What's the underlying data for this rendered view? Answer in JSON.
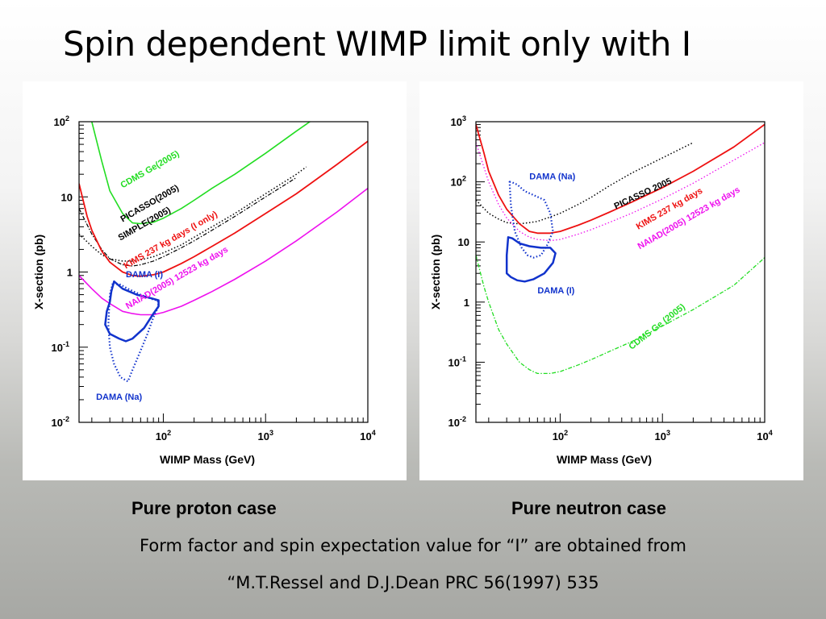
{
  "slide": {
    "title": "Spin dependent WIMP limit only with I",
    "caption_left": "Pure proton case",
    "caption_right": "Pure neutron case",
    "footnote_line1": "Form factor and spin expectation value for “I” are obtained from",
    "footnote_line2": "“M.T.Ressel and D.J.Dean PRC 56(1997) 535"
  },
  "chart_data": [
    {
      "type": "line",
      "xlabel": "WIMP Mass (GeV)",
      "ylabel": "X-section (pb)",
      "xscale": "log",
      "yscale": "log",
      "xlim": [
        15,
        10000
      ],
      "ylim": [
        0.01,
        100
      ],
      "xticks": [
        {
          "v": 100,
          "m": "10",
          "e": "2"
        },
        {
          "v": 1000,
          "m": "10",
          "e": "3"
        },
        {
          "v": 10000,
          "m": "10",
          "e": "4"
        }
      ],
      "yticks": [
        {
          "v": 0.01,
          "m": "10",
          "e": "-2"
        },
        {
          "v": 0.1,
          "m": "10",
          "e": "-1"
        },
        {
          "v": 1,
          "m": "1",
          "e": ""
        },
        {
          "v": 10,
          "m": "10",
          "e": ""
        },
        {
          "v": 100,
          "m": "10",
          "e": "2"
        }
      ],
      "series": [
        {
          "name": "CDMS Ge(2005)",
          "color": "#22dd22",
          "style": "solid",
          "width": 1.6,
          "x": [
            20,
            25,
            30,
            40,
            50,
            60,
            80,
            100,
            150,
            200,
            300,
            500,
            1000,
            2000,
            3000
          ],
          "y": [
            100,
            30,
            12,
            6,
            4.5,
            4.4,
            4.6,
            5.2,
            7,
            9,
            13,
            20,
            38,
            75,
            110
          ]
        },
        {
          "name": "PICASSO(2005)",
          "color": "#000000",
          "style": "dotted",
          "width": 1.5,
          "x": [
            15,
            20,
            25,
            30,
            40,
            50,
            60,
            80,
            100,
            150,
            200,
            300,
            500,
            1000,
            2000,
            2500
          ],
          "y": [
            3.2,
            2.2,
            1.7,
            1.5,
            1.4,
            1.4,
            1.45,
            1.6,
            1.8,
            2.3,
            2.9,
            4,
            6,
            11,
            20,
            25
          ]
        },
        {
          "name": "SIMPLE(2005)",
          "color": "#000000",
          "style": "dashdot",
          "width": 1.2,
          "x": [
            15,
            20,
            25,
            30,
            40,
            50,
            60,
            80,
            100,
            150,
            200,
            300,
            500,
            1000,
            2000
          ],
          "y": [
            7,
            3.2,
            2,
            1.5,
            1.25,
            1.2,
            1.25,
            1.4,
            1.6,
            2.1,
            2.6,
            3.6,
            5.5,
            10,
            18
          ]
        },
        {
          "name": "KIMS 237 kg days (I only)",
          "color": "#ee1111",
          "style": "solid",
          "width": 1.8,
          "x": [
            15,
            18,
            20,
            25,
            30,
            40,
            50,
            60,
            80,
            100,
            150,
            200,
            300,
            500,
            1000,
            2000,
            5000,
            10000
          ],
          "y": [
            15,
            5.5,
            3.6,
            1.9,
            1.35,
            1,
            0.9,
            0.88,
            0.92,
            1,
            1.3,
            1.6,
            2.2,
            3.3,
            6,
            11,
            27,
            55
          ]
        },
        {
          "name": "NAIAD(2005) 12523 kg days",
          "color": "#ee11ee",
          "style": "solid",
          "width": 1.6,
          "x": [
            15,
            20,
            25,
            30,
            40,
            50,
            60,
            80,
            100,
            150,
            200,
            300,
            500,
            1000,
            2000,
            5000,
            10000
          ],
          "y": [
            0.9,
            0.6,
            0.45,
            0.38,
            0.3,
            0.28,
            0.27,
            0.27,
            0.29,
            0.35,
            0.42,
            0.55,
            0.8,
            1.4,
            2.6,
            6.3,
            13
          ]
        }
      ],
      "regions": [
        {
          "name": "DAMA (I)",
          "color": "#1133cc",
          "style": "solid",
          "width": 2.5,
          "x": [
            33,
            31,
            30,
            28,
            27,
            30,
            37,
            43,
            50,
            65,
            80,
            90,
            90,
            75,
            55,
            40,
            33
          ],
          "y": [
            0.75,
            0.55,
            0.4,
            0.3,
            0.2,
            0.15,
            0.13,
            0.12,
            0.13,
            0.18,
            0.28,
            0.35,
            0.42,
            0.45,
            0.5,
            0.6,
            0.75
          ]
        },
        {
          "name": "DAMA (Na)",
          "color": "#1133cc",
          "style": "dotted",
          "width": 2.2,
          "x": [
            32,
            30,
            29,
            30,
            33,
            38,
            45,
            50,
            60,
            70,
            80,
            90,
            88,
            80,
            60,
            45,
            38,
            32
          ],
          "y": [
            0.7,
            0.5,
            0.2,
            0.1,
            0.06,
            0.04,
            0.035,
            0.05,
            0.09,
            0.15,
            0.25,
            0.35,
            0.42,
            0.43,
            0.5,
            0.6,
            0.68,
            0.7
          ]
        }
      ],
      "labels": [
        {
          "text": "CDMS Ge(2005)",
          "color": "#22dd22",
          "x": 40,
          "y": 13,
          "angle": -30
        },
        {
          "text": "PICASSO(2005)",
          "color": "#000000",
          "x": 40,
          "y": 4.6,
          "angle": -30
        },
        {
          "text": "SIMPLE(2005)",
          "color": "#000000",
          "x": 38,
          "y": 2.6,
          "angle": -30
        },
        {
          "text": "KIMS 237 kg days (I only)",
          "color": "#ee1111",
          "x": 43,
          "y": 1.1,
          "angle": -30
        },
        {
          "text": "NAIAD(2005) 12523 kg days",
          "color": "#ee11ee",
          "x": 45,
          "y": 0.32,
          "angle": -30
        },
        {
          "text": "DAMA (I)",
          "color": "#1133cc",
          "x": 43,
          "y": 0.85,
          "angle": 0
        },
        {
          "text": "DAMA (Na)",
          "color": "#1133cc",
          "x": 22,
          "y": 0.02,
          "angle": 0
        }
      ]
    },
    {
      "type": "line",
      "xlabel": "WIMP Mass (GeV)",
      "ylabel": "X-section (pb)",
      "xscale": "log",
      "yscale": "log",
      "xlim": [
        15,
        10000
      ],
      "ylim": [
        0.01,
        1000
      ],
      "xticks": [
        {
          "v": 100,
          "m": "10",
          "e": "2"
        },
        {
          "v": 1000,
          "m": "10",
          "e": "3"
        },
        {
          "v": 10000,
          "m": "10",
          "e": "4"
        }
      ],
      "yticks": [
        {
          "v": 0.01,
          "m": "10",
          "e": "-2"
        },
        {
          "v": 0.1,
          "m": "10",
          "e": "-1"
        },
        {
          "v": 1,
          "m": "1",
          "e": ""
        },
        {
          "v": 10,
          "m": "10",
          "e": ""
        },
        {
          "v": 100,
          "m": "10",
          "e": "2"
        },
        {
          "v": 1000,
          "m": "10",
          "e": "3"
        }
      ],
      "series": [
        {
          "name": "PICASSO 2005",
          "color": "#000000",
          "style": "dotted",
          "width": 1.5,
          "x": [
            15,
            20,
            25,
            30,
            40,
            50,
            60,
            80,
            100,
            150,
            200,
            300,
            500,
            1000,
            2000
          ],
          "y": [
            50,
            30,
            24,
            21,
            20,
            21,
            22,
            26,
            30,
            42,
            55,
            85,
            140,
            250,
            450
          ]
        },
        {
          "name": "KIMS 237 kg days",
          "color": "#ee1111",
          "style": "solid",
          "width": 1.8,
          "x": [
            15,
            18,
            20,
            25,
            30,
            40,
            50,
            60,
            80,
            100,
            150,
            200,
            300,
            500,
            1000,
            2000,
            5000,
            10000
          ],
          "y": [
            900,
            300,
            150,
            60,
            35,
            20,
            15,
            14,
            14,
            15,
            19,
            23,
            31,
            46,
            80,
            150,
            380,
            900
          ]
        },
        {
          "name": "NAIAD(2005) 12523 kg days",
          "color": "#ee11ee",
          "style": "dotted",
          "width": 1.3,
          "x": [
            15,
            20,
            25,
            30,
            40,
            50,
            60,
            80,
            100,
            150,
            200,
            300,
            500,
            1000,
            2000,
            5000,
            10000
          ],
          "y": [
            450,
            100,
            42,
            25,
            15,
            12,
            11,
            10.5,
            11,
            13.5,
            16,
            21,
            30,
            52,
            95,
            230,
            450
          ]
        },
        {
          "name": "CDMS Ge (2005)",
          "color": "#22dd22",
          "style": "dashdot",
          "width": 1.3,
          "x": [
            15,
            18,
            20,
            25,
            30,
            40,
            50,
            60,
            80,
            100,
            150,
            200,
            300,
            500,
            1000,
            2000,
            5000,
            10000
          ],
          "y": [
            6,
            1.8,
            1,
            0.35,
            0.2,
            0.1,
            0.075,
            0.065,
            0.065,
            0.07,
            0.09,
            0.11,
            0.15,
            0.22,
            0.4,
            0.75,
            1.9,
            5.5
          ]
        }
      ],
      "regions": [
        {
          "name": "DAMA (Na)",
          "color": "#1133cc",
          "style": "dotted",
          "width": 2.2,
          "x": [
            32,
            33,
            38,
            45,
            55,
            70,
            80,
            85,
            75,
            65,
            55,
            48,
            42,
            36,
            33,
            32
          ],
          "y": [
            100,
            100,
            90,
            70,
            60,
            50,
            30,
            15,
            9,
            6,
            5.5,
            6,
            8,
            15,
            40,
            100
          ]
        },
        {
          "name": "DAMA (I)",
          "color": "#1133cc",
          "style": "solid",
          "width": 2.5,
          "x": [
            31,
            30,
            30,
            33,
            38,
            45,
            55,
            70,
            85,
            90,
            80,
            65,
            50,
            40,
            34,
            31
          ],
          "y": [
            12,
            6,
            3,
            2.6,
            2.3,
            2.2,
            2.4,
            3,
            4.5,
            6.5,
            8,
            8,
            8.5,
            9.5,
            11.5,
            12
          ]
        }
      ],
      "labels": [
        {
          "text": "DAMA (Na)",
          "color": "#1133cc",
          "x": 50,
          "y": 110,
          "angle": 0
        },
        {
          "text": "PICASSO 2005",
          "color": "#000000",
          "x": 350,
          "y": 35,
          "angle": -25
        },
        {
          "text": "KIMS 237 kg days",
          "color": "#ee1111",
          "x": 580,
          "y": 16,
          "angle": -30
        },
        {
          "text": "NAIAD(2005) 12523 kg days",
          "color": "#ee11ee",
          "x": 600,
          "y": 7.5,
          "angle": -30
        },
        {
          "text": "DAMA (I)",
          "color": "#1133cc",
          "x": 60,
          "y": 1.4,
          "angle": 0
        },
        {
          "text": "CDMS Ge (2005)",
          "color": "#22dd22",
          "x": 500,
          "y": 0.16,
          "angle": -38
        }
      ]
    }
  ]
}
